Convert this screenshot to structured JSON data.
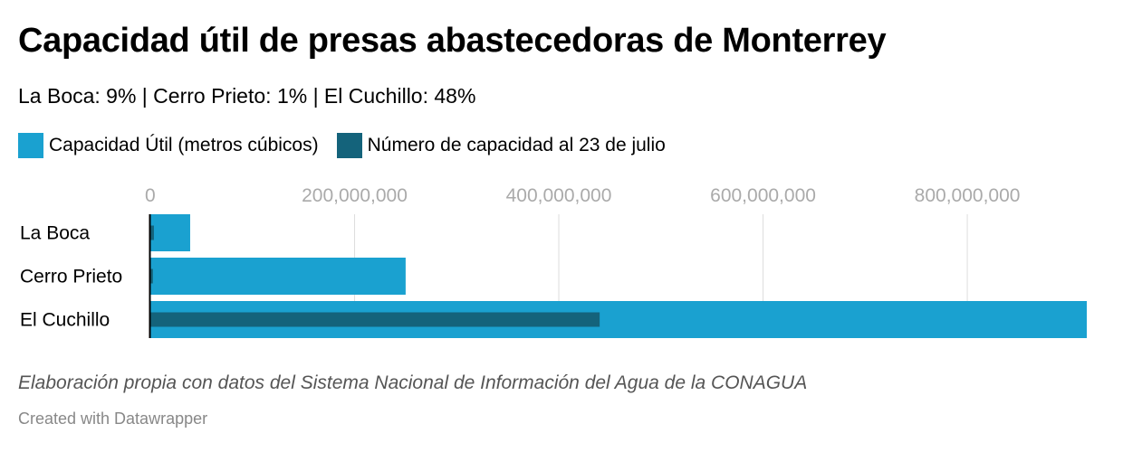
{
  "title": "Capacidad útil de presas abastecedoras de Monterrey",
  "subtitle": "La Boca: 9% | Cerro Prieto: 1% | El Cuchillo: 48%",
  "notes": "Elaboración propia con datos del Sistema Nacional de Información del Agua de la CONAGUA",
  "byline": "Created with Datawrapper",
  "colors": {
    "capacity": "#1aa1d0",
    "current": "#14637b",
    "grid": "#dddddd",
    "tick_text": "#aaaaaa"
  },
  "chart_data": {
    "type": "bar",
    "orientation": "horizontal",
    "categories": [
      "La Boca",
      "Cerro Prieto",
      "El Cuchillo"
    ],
    "series": [
      {
        "name": "Capacidad Útil (metros cúbicos)",
        "values": [
          39000000,
          250000000,
          917000000
        ]
      },
      {
        "name": "Número de capacidad al 23 de julio",
        "values": [
          3500000,
          2500000,
          440000000
        ]
      }
    ],
    "xlim": [
      0,
      917000000
    ],
    "xticks": [
      0,
      200000000,
      400000000,
      600000000,
      800000000
    ],
    "xtick_labels": [
      "0",
      "200,000,000",
      "400,000,000",
      "600,000,000",
      "800,000,000"
    ],
    "grid": true,
    "legend_position": "top-left"
  }
}
